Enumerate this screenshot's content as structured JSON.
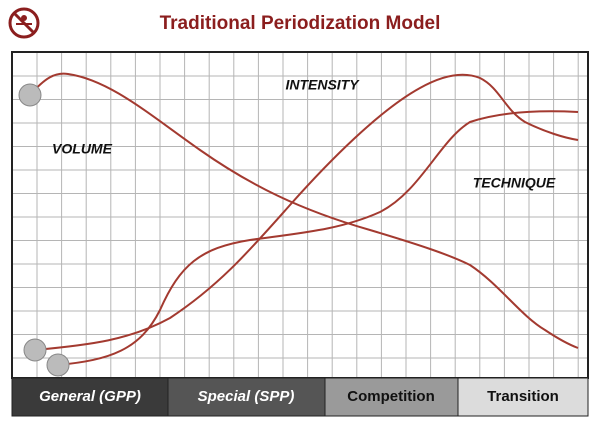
{
  "header": {
    "title": "Traditional Periodization Model"
  },
  "curves": [
    {
      "label": "VOLUME"
    },
    {
      "label": "INTENSITY"
    },
    {
      "label": "TECHNIQUE"
    }
  ],
  "phases": [
    {
      "label": "General (GPP)"
    },
    {
      "label": "Special (SPP)"
    },
    {
      "label": "Competition"
    },
    {
      "label": "Transition"
    }
  ]
}
